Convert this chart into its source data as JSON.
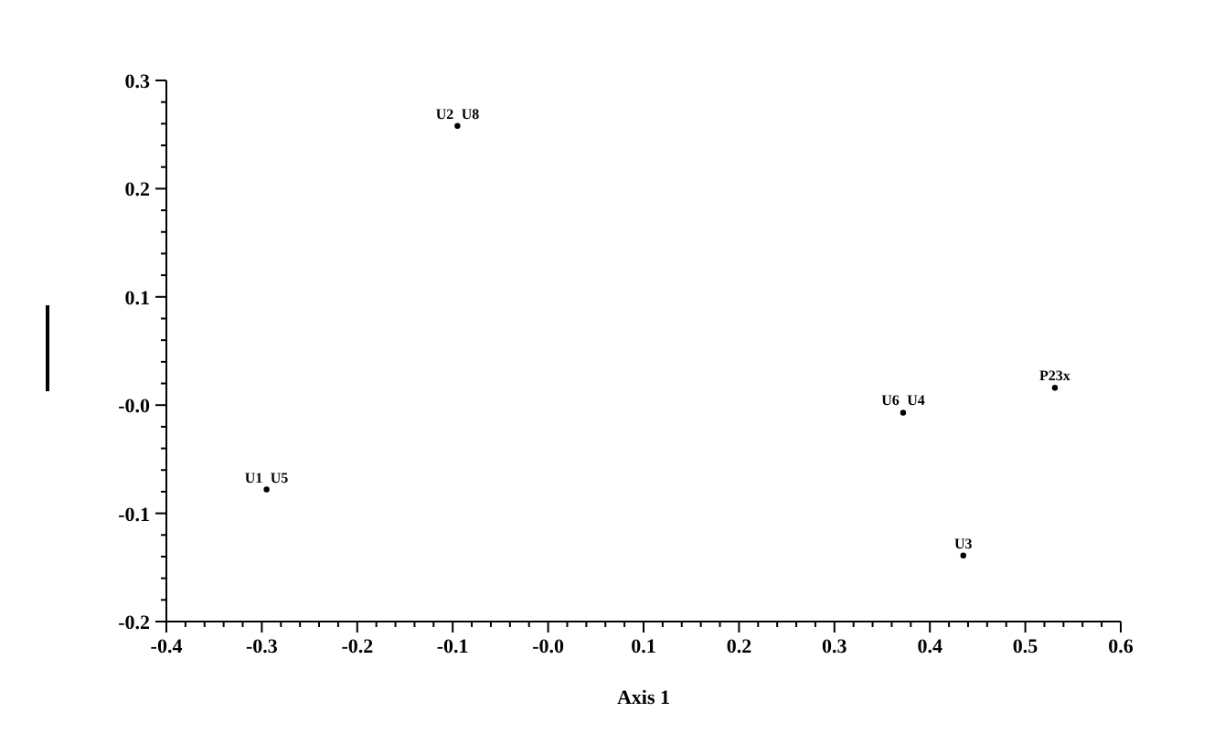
{
  "chart_data": {
    "type": "scatter",
    "xlabel": "Axis 1",
    "x": [
      -0.095,
      0.372,
      0.531,
      -0.295,
      0.435
    ],
    "values": [
      0.258,
      -0.007,
      0.016,
      -0.078,
      -0.139
    ],
    "marker": "circle",
    "annotations": [
      {
        "text": "U2",
        "x": -0.095,
        "y": 0.258
      },
      {
        "text": "U8",
        "x": -0.095,
        "y": 0.258
      },
      {
        "text": "U6",
        "x": 0.372,
        "y": -0.007
      },
      {
        "text": "U4",
        "x": 0.372,
        "y": -0.007
      },
      {
        "text": "P23x",
        "x": 0.531,
        "y": 0.016
      },
      {
        "text": "U1",
        "x": -0.295,
        "y": -0.078
      },
      {
        "text": "U5",
        "x": -0.295,
        "y": -0.078
      },
      {
        "text": "U3",
        "x": 0.435,
        "y": -0.139
      }
    ],
    "xlim": [
      -0.4,
      0.6
    ],
    "xticks": [
      -0.4,
      -0.3,
      -0.2,
      -0.1,
      {
        "value": 0,
        "label": "-0.0"
      },
      0.1,
      0.2,
      0.3,
      0.4,
      0.5,
      0.6
    ],
    "ylim": [
      -0.2,
      0.3
    ],
    "yticks": [
      -0.2,
      -0.1,
      {
        "value": 0,
        "label": "-0.0"
      },
      0.1,
      0.2,
      0.3
    ],
    "grid": false
  }
}
